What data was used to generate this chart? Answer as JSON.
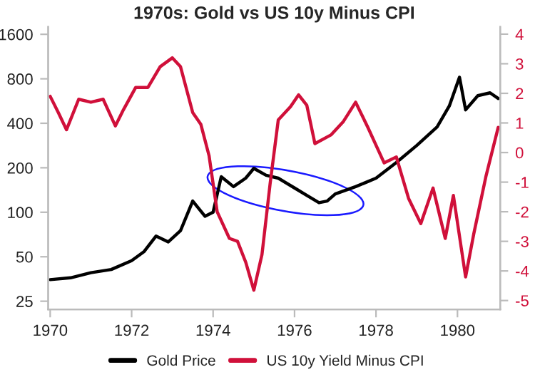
{
  "chart_data": {
    "type": "line",
    "title": "1970s: Gold vs US 10y Minus CPI",
    "log": "y",
    "grid": false,
    "legend": "bottom",
    "xlim": [
      1969.95,
      1981.05
    ],
    "xticks": [
      1970,
      1972,
      1974,
      1976,
      1978,
      1980
    ],
    "ylim": [
      22,
      1800
    ],
    "yticks": [
      25,
      50,
      100,
      200,
      400,
      800,
      1600
    ],
    "y2lim": [
      -5.3,
      4.25
    ],
    "y2ticks": [
      -5,
      -4,
      -3,
      -2,
      -1,
      0,
      1,
      2,
      3,
      4
    ],
    "series": [
      {
        "name": "Gold Price",
        "color": "#000000",
        "x": [
          1970.0,
          1970.5,
          1971.0,
          1971.5,
          1972.0,
          1972.3,
          1972.6,
          1972.9,
          1973.2,
          1973.5,
          1973.8,
          1974.0,
          1974.2,
          1974.5,
          1974.8,
          1975.0,
          1975.3,
          1975.6,
          1976.0,
          1976.3,
          1976.6,
          1976.8,
          1977.0,
          1977.5,
          1978.0,
          1978.5,
          1979.0,
          1979.5,
          1979.8,
          1980.05,
          1980.2,
          1980.5,
          1980.8,
          1981.0
        ],
        "values": [
          35,
          36,
          39,
          41,
          47,
          54,
          69,
          63,
          75,
          119,
          94,
          100,
          174,
          149,
          170,
          198,
          178,
          170,
          146,
          130,
          116,
          119,
          133,
          149,
          170,
          217,
          283,
          378,
          524,
          820,
          493,
          615,
          643,
          589
        ]
      },
      {
        "name": "US 10y Yield Minus CPI",
        "color": "#d0103a",
        "axis": "y2",
        "x": [
          1970.0,
          1970.2,
          1970.4,
          1970.7,
          1971.0,
          1971.3,
          1971.6,
          1971.8,
          1972.1,
          1972.4,
          1972.7,
          1973.0,
          1973.2,
          1973.5,
          1973.7,
          1973.9,
          1974.1,
          1974.4,
          1974.6,
          1974.8,
          1975.0,
          1975.2,
          1975.4,
          1975.6,
          1975.9,
          1976.1,
          1976.3,
          1976.5,
          1976.9,
          1977.2,
          1977.5,
          1977.8,
          1978.2,
          1978.5,
          1978.8,
          1979.1,
          1979.4,
          1979.7,
          1979.9,
          1980.2,
          1980.4,
          1980.7,
          1981.0
        ],
        "values": [
          1.9,
          1.35,
          0.77,
          1.8,
          1.7,
          1.8,
          0.9,
          1.45,
          2.2,
          2.2,
          2.9,
          3.2,
          2.9,
          1.35,
          0.95,
          -0.1,
          -2.0,
          -2.9,
          -3.0,
          -3.7,
          -4.65,
          -3.45,
          -1.05,
          1.1,
          1.55,
          1.95,
          1.6,
          0.3,
          0.6,
          1.05,
          1.7,
          0.85,
          -0.35,
          -0.15,
          -1.55,
          -2.4,
          -1.2,
          -2.9,
          -1.45,
          -4.2,
          -2.75,
          -0.8,
          0.85
        ]
      }
    ]
  }
}
